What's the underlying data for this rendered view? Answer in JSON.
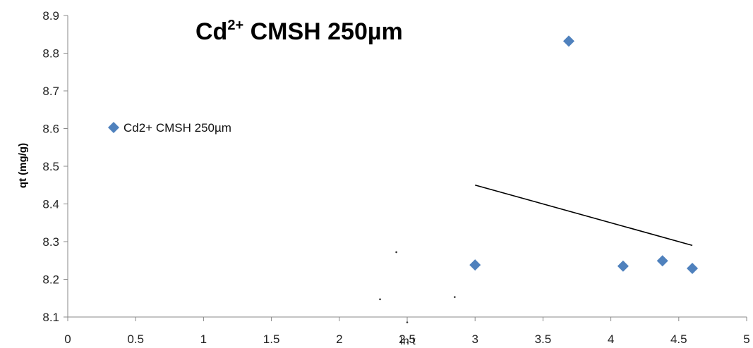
{
  "chart_data": {
    "type": "scatter",
    "title": {
      "prefix": "Cd",
      "superscript": "2+",
      "suffix": " CMSH 250µm"
    },
    "xlabel": "ln t",
    "ylabel": "qt (mg/g)",
    "xlim": [
      0,
      5
    ],
    "ylim": [
      8.1,
      8.9
    ],
    "x_ticks": [
      0,
      0.5,
      1,
      1.5,
      2,
      2.5,
      3,
      3.5,
      4,
      4.5,
      5
    ],
    "x_tick_labels": [
      "0",
      "0.5",
      "1",
      "1.5",
      "2",
      "2.5",
      "3",
      "3.5",
      "4",
      "4.5",
      "5"
    ],
    "y_ticks": [
      8.1,
      8.2,
      8.3,
      8.4,
      8.5,
      8.6,
      8.7,
      8.8,
      8.9
    ],
    "y_tick_labels": [
      "8.1",
      "8.2",
      "8.3",
      "8.4",
      "8.5",
      "8.6",
      "8.7",
      "8.8",
      "8.9"
    ],
    "grid": false,
    "legend_position": "left",
    "series": [
      {
        "name": "Cd2+ CMSH 250µm",
        "color": "#4f81bd",
        "marker": "diamond",
        "points": [
          {
            "x": 3.0,
            "y": 8.238
          },
          {
            "x": 3.69,
            "y": 8.832
          },
          {
            "x": 4.09,
            "y": 8.235
          },
          {
            "x": 4.38,
            "y": 8.249
          },
          {
            "x": 4.6,
            "y": 8.229
          }
        ]
      }
    ],
    "trendline": {
      "color": "#000000",
      "points": [
        {
          "x": 3.0,
          "y": 8.45
        },
        {
          "x": 4.6,
          "y": 8.29
        }
      ]
    },
    "stray_dots": [
      {
        "x": 2.42,
        "y": 8.272
      },
      {
        "x": 2.3,
        "y": 8.147
      },
      {
        "x": 2.85,
        "y": 8.153
      },
      {
        "x": 2.5,
        "y": 8.086
      }
    ]
  }
}
